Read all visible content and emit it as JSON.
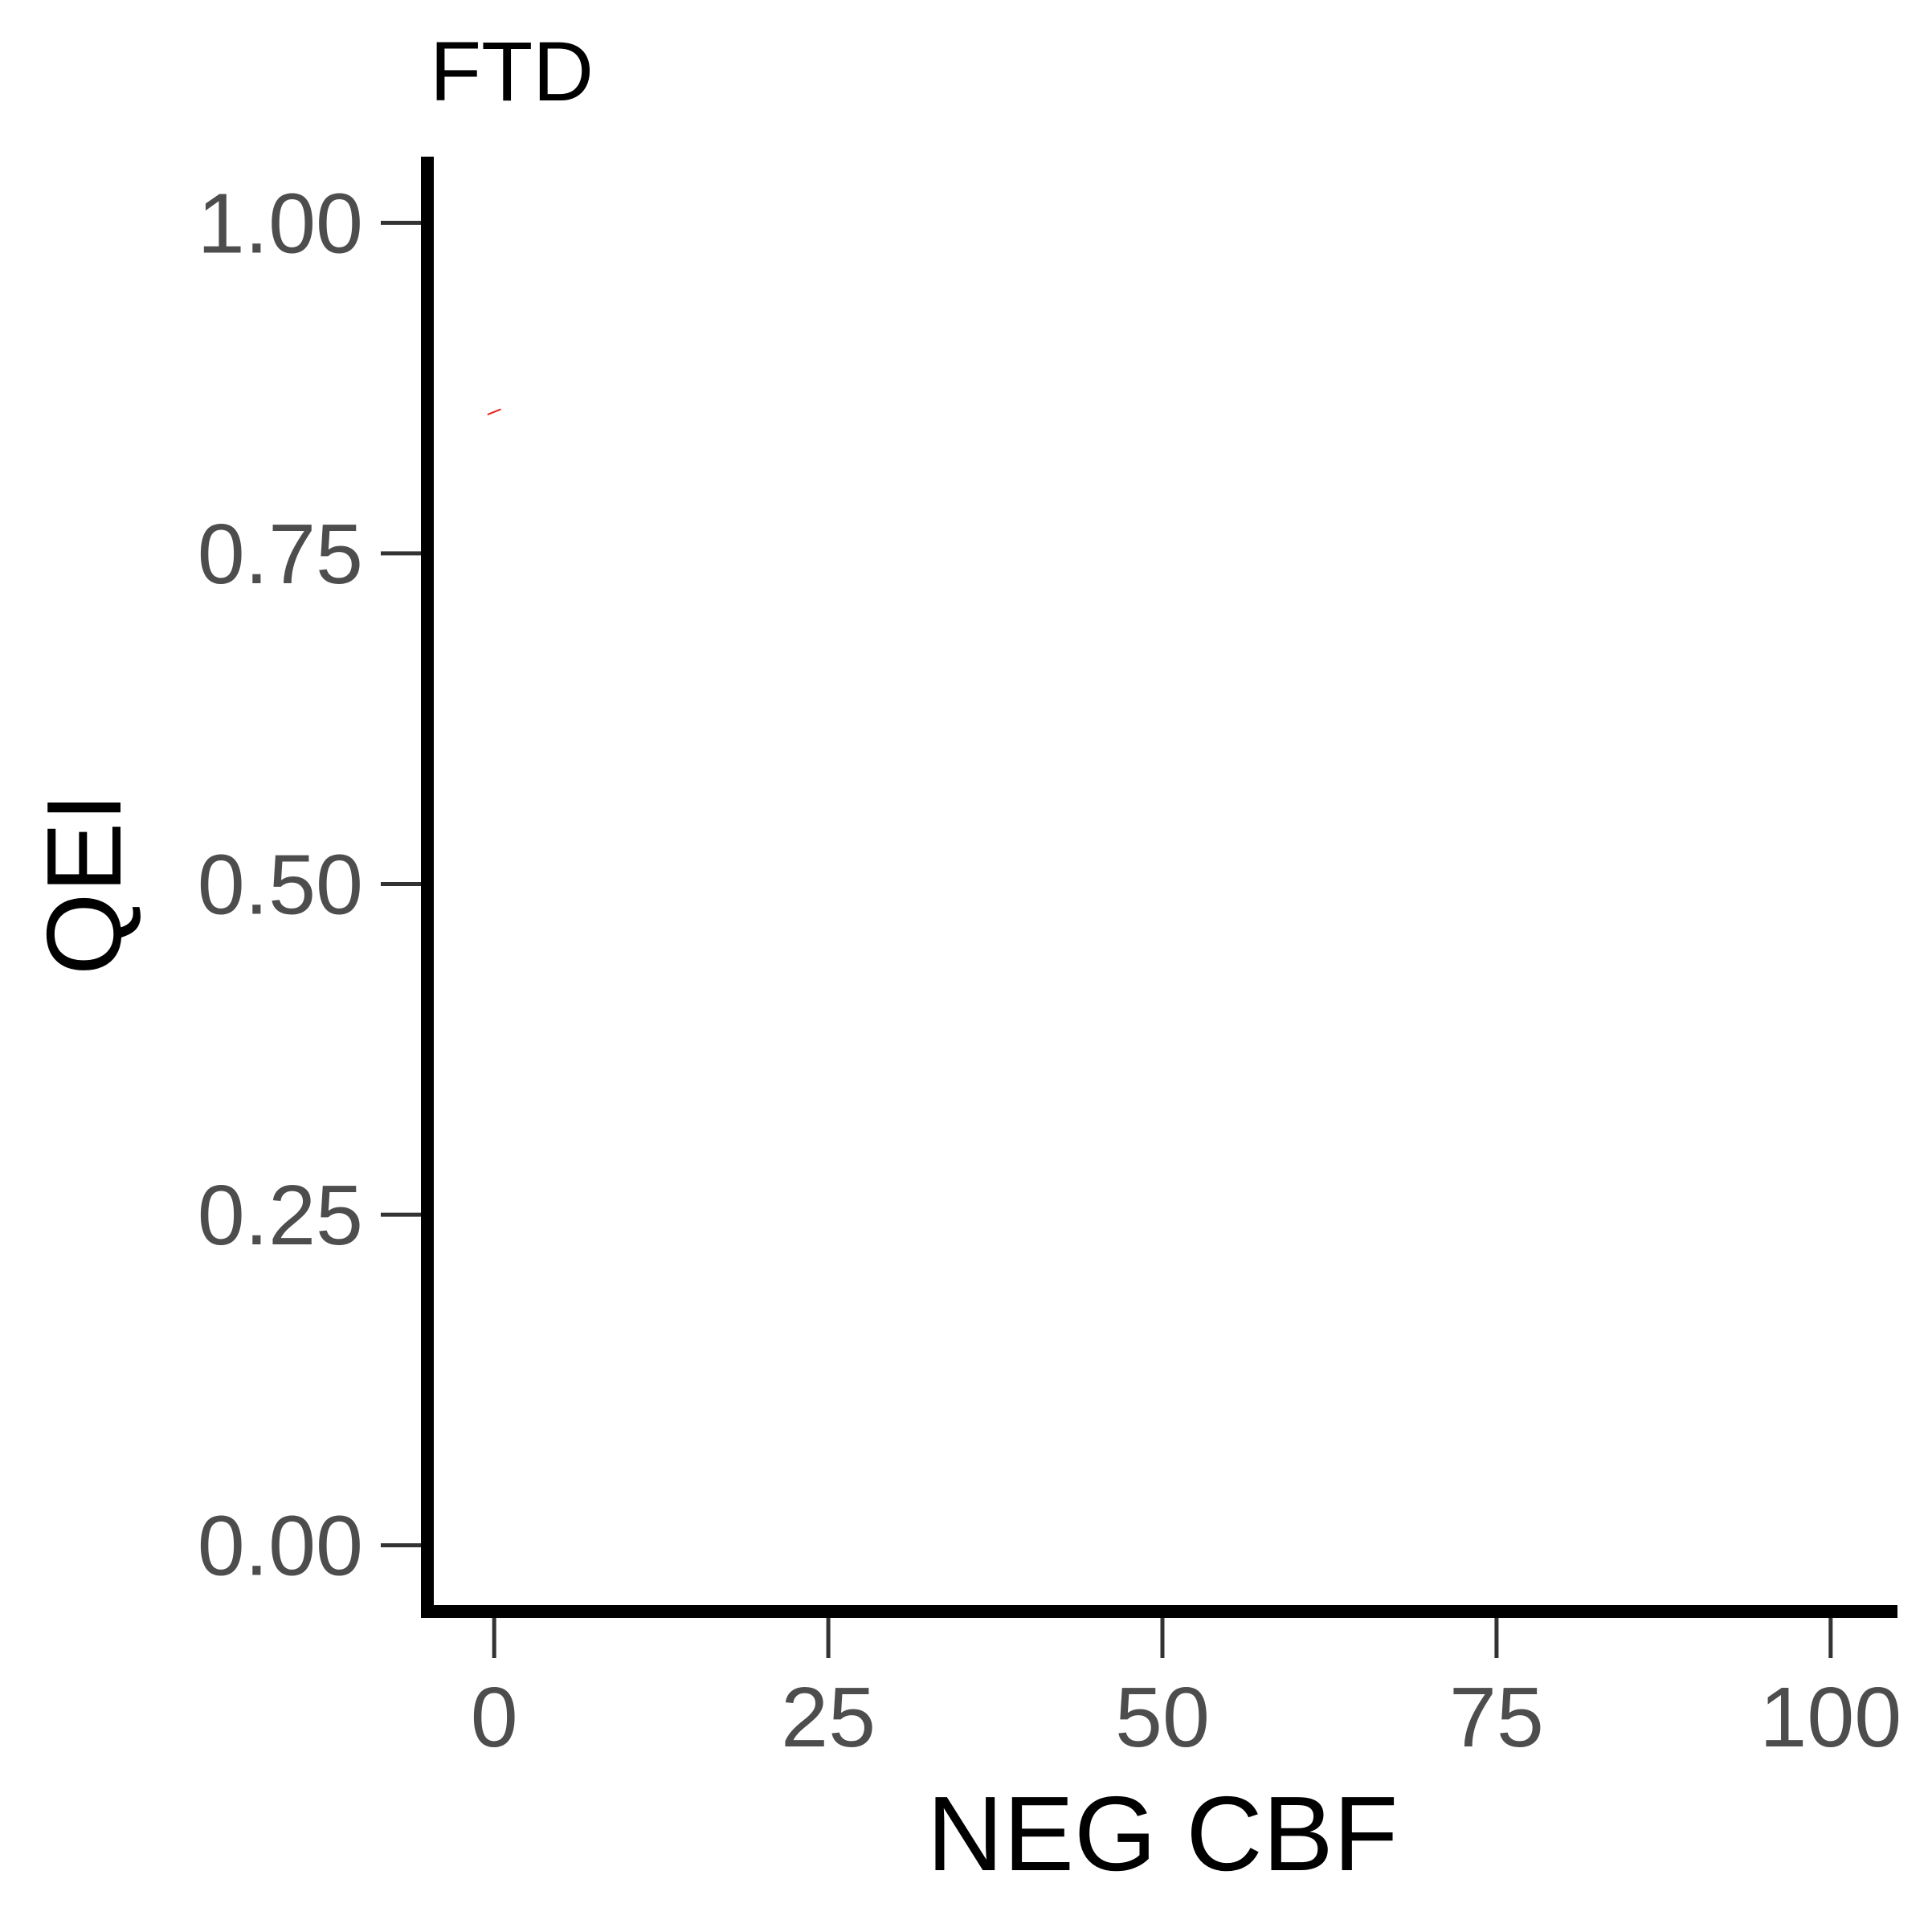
{
  "chart_data": {
    "type": "line",
    "title": "FTD",
    "xlabel": "NEG CBF",
    "ylabel": "QEI",
    "xlim": [
      -5,
      105
    ],
    "ylim": [
      -0.05,
      1.05
    ],
    "x_ticks": [
      0,
      25,
      50,
      75,
      100
    ],
    "x_tick_labels": [
      "0",
      "25",
      "50",
      "75",
      "100"
    ],
    "y_ticks": [
      0,
      0.25,
      0.5,
      0.75,
      1
    ],
    "y_tick_labels": [
      "0.00",
      "0.25",
      "0.50",
      "0.75",
      "1.00"
    ],
    "grid": false,
    "legend": "none",
    "series": [
      {
        "color": "#e8201a",
        "x": [
          -0.5,
          0.5
        ],
        "y": [
          0.855,
          0.859
        ]
      }
    ],
    "colors": {
      "axis_line": "#000000",
      "tick": "#333333",
      "tick_label": "#4d4d4d",
      "title": "#000000",
      "axis_title": "#000000"
    }
  }
}
